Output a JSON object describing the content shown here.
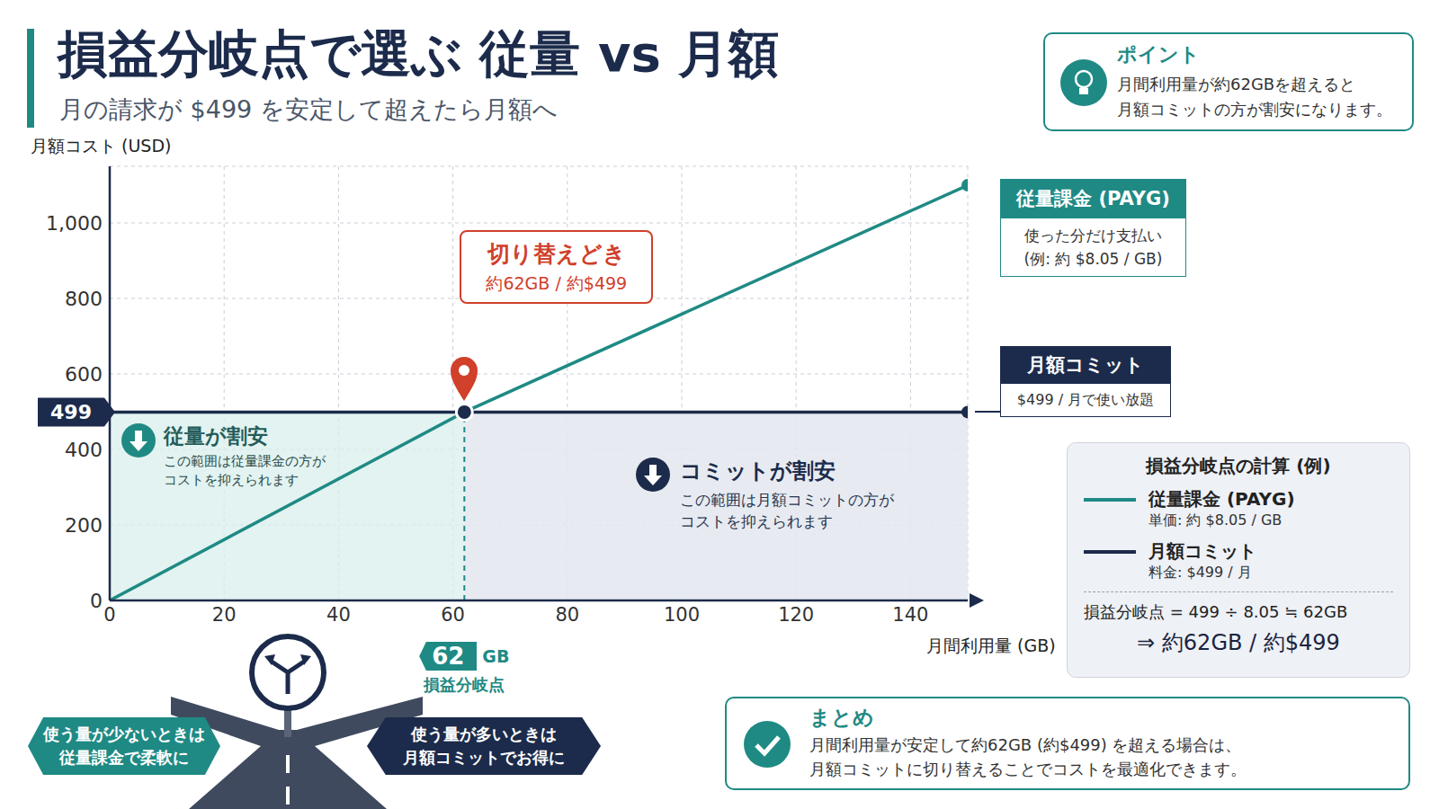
{
  "header": {
    "title": "損益分岐点で選ぶ 従量 vs 月額",
    "subtitle": "月の請求が $499 を安定して超えたら月額へ"
  },
  "point_box": {
    "title": "ポイント",
    "lines": [
      "月間利用量が約62GBを超えると",
      "月額コミットの方が割安になります。"
    ]
  },
  "chart_data": {
    "type": "line",
    "y_label": "月額コスト (USD)",
    "x_label": "月間利用量 (GB)",
    "x": [
      0,
      62,
      150
    ],
    "series": [
      {
        "name": "従量課金 (PAYG)",
        "color": "#1f8a84",
        "values": [
          0,
          499,
          1100
        ],
        "marker": "end"
      },
      {
        "name": "月額コミット",
        "color": "#1c2b4b",
        "values": [
          499,
          499,
          499
        ],
        "marker": "end"
      }
    ],
    "xlim": [
      0,
      150
    ],
    "xticks": [
      0,
      20,
      40,
      60,
      80,
      100,
      120,
      140
    ],
    "ylim": [
      0,
      1150
    ],
    "yticks": [
      0,
      200,
      400,
      499,
      600,
      800,
      {
        "value": 1000,
        "label": "1,000"
      }
    ],
    "grid": true,
    "annotations": {
      "switch_callout": {
        "title": "切り替えどき",
        "text": "約62GB / 約$499"
      },
      "payg_label": [
        "使った分だけ支払い",
        "(例: 約 $8.05 / GB)"
      ],
      "commit_label": [
        "$499 / 月で使い放題"
      ],
      "regions": [
        {
          "title": "従量が割安",
          "lines": [
            "この範囲は従量課金の方が",
            "コストを抑えられます"
          ]
        },
        {
          "title": "コミットが割安",
          "lines": [
            "この範囲は月額コミットの方が",
            "コストを抑えられます"
          ]
        }
      ],
      "breakeven": {
        "x": 62,
        "y": 499,
        "unit": "GB",
        "label": "損益分岐点"
      }
    }
  },
  "calc_box": {
    "title": "損益分岐点の計算 (例)",
    "details": [
      "単価: 約 $8.05 / GB",
      "料金: $499 / 月"
    ],
    "formula": "損益分岐点 = 499 ÷ 8.05 ≒ 62GB",
    "result": "⇒ 約62GB / 約$499"
  },
  "summary": {
    "title": "まとめ",
    "lines": [
      "月間利用量が安定して約62GB (約$499) を超える場合は、",
      "月額コミットに切り替えることでコストを最適化できます。"
    ]
  },
  "signs": [
    {
      "lines": [
        "使う量が少ないときは",
        "従量課金で柔軟に"
      ]
    },
    {
      "lines": [
        "使う量が多いときは",
        "月額コミットでお得に"
      ]
    }
  ]
}
